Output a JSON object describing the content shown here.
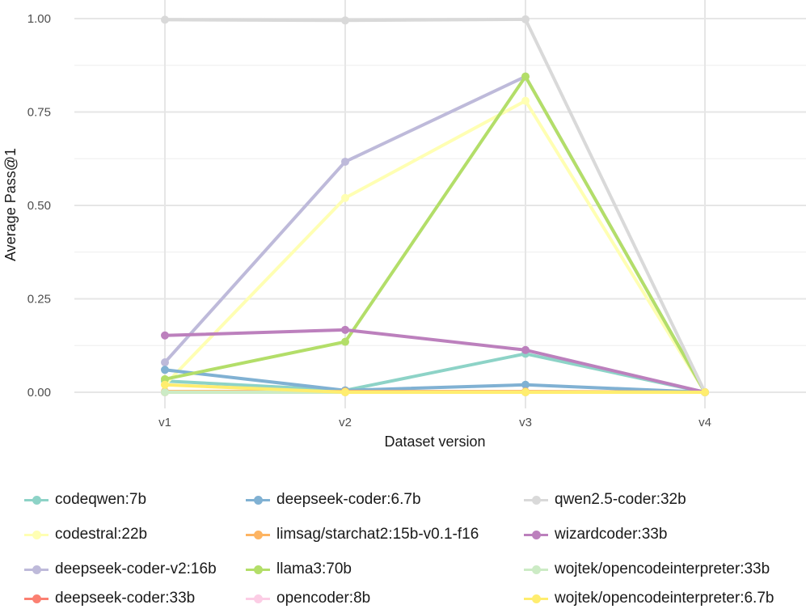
{
  "chart_data": {
    "type": "line",
    "title": "",
    "xlabel": "Dataset version",
    "ylabel": "Average Pass@1",
    "categories": [
      "v1",
      "v2",
      "v3",
      "v4"
    ],
    "ylim": [
      0,
      1.0
    ],
    "yticks": [
      "0.00",
      "0.25",
      "0.50",
      "0.75",
      "1.00"
    ],
    "grid": true,
    "legend_position": "bottom",
    "series": [
      {
        "name": "codeqwen:7b",
        "color": "#8dd3c7",
        "values": [
          0.03,
          0.005,
          0.103,
          0.0
        ]
      },
      {
        "name": "codestral:22b",
        "color": "#ffffb3",
        "values": [
          0.02,
          0.52,
          0.78,
          0.0
        ]
      },
      {
        "name": "deepseek-coder-v2:16b",
        "color": "#bebada",
        "values": [
          0.08,
          0.617,
          0.845,
          0.0
        ]
      },
      {
        "name": "deepseek-coder:33b",
        "color": "#fb8072",
        "values": [
          0.0,
          0.0,
          0.0,
          0.0
        ]
      },
      {
        "name": "deepseek-coder:6.7b",
        "color": "#80b1d3",
        "values": [
          0.06,
          0.005,
          0.02,
          0.0
        ]
      },
      {
        "name": "limsag/starchat2:15b-v0.1-f16",
        "color": "#fdb462",
        "values": [
          0.002,
          0.002,
          0.002,
          0.0
        ]
      },
      {
        "name": "llama3:70b",
        "color": "#b3de69",
        "values": [
          0.035,
          0.135,
          0.845,
          0.0
        ]
      },
      {
        "name": "opencoder:8b",
        "color": "#fccde5",
        "values": [
          0.0,
          0.0,
          0.0,
          0.0
        ]
      },
      {
        "name": "qwen2.5-coder:32b",
        "color": "#d9d9d9",
        "values": [
          0.997,
          0.995,
          0.998,
          0.0
        ]
      },
      {
        "name": "wizardcoder:33b",
        "color": "#bc80bd",
        "values": [
          0.152,
          0.167,
          0.113,
          0.0
        ]
      },
      {
        "name": "wojtek/opencodeinterpreter:33b",
        "color": "#ccebc5",
        "values": [
          0.0,
          0.0,
          0.0,
          0.0
        ]
      },
      {
        "name": "wojtek/opencodeinterpreter:6.7b",
        "color": "#ffed6f",
        "values": [
          0.02,
          0.0,
          0.0,
          0.0
        ]
      }
    ]
  }
}
